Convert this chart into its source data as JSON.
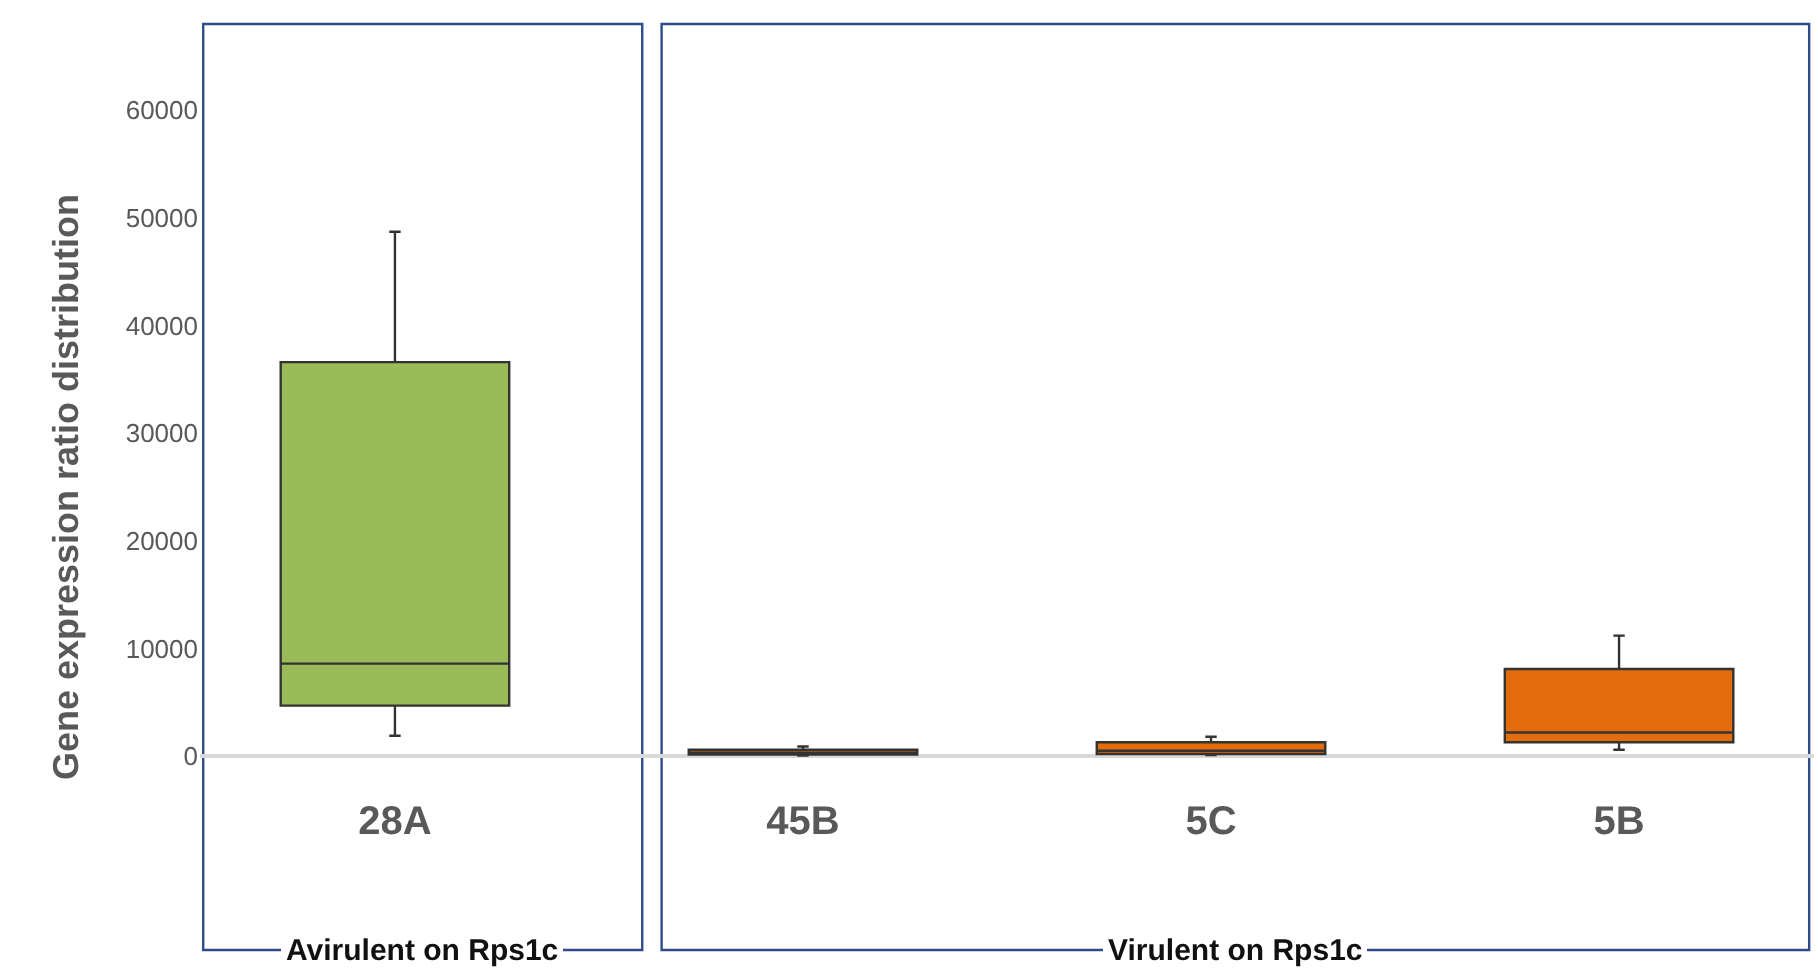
{
  "chart_data": {
    "type": "box",
    "ylabel": "Gene expression ratio distribution",
    "categories": [
      "28A",
      "45B",
      "5C",
      "5B"
    ],
    "boxes": [
      {
        "low": 1900,
        "q1": 4700,
        "median": 8600,
        "q3": 36600,
        "high": 48700
      },
      {
        "low": 50,
        "q1": 150,
        "median": 300,
        "q3": 600,
        "high": 900
      },
      {
        "low": 100,
        "q1": 200,
        "median": 500,
        "q3": 1300,
        "high": 1800
      },
      {
        "low": 600,
        "q1": 1300,
        "median": 2200,
        "q3": 8100,
        "high": 11200
      }
    ],
    "colors": [
      "#9bbb59",
      "#e46c0a",
      "#e46c0a",
      "#e46c0a"
    ],
    "ylim": [
      -18000,
      68000
    ],
    "yticks": [
      0,
      10000,
      20000,
      30000,
      40000,
      50000,
      60000
    ],
    "grid": false,
    "annotations": [
      "Avirulent on Rps1c",
      "Virulent on Rps1c"
    ]
  }
}
